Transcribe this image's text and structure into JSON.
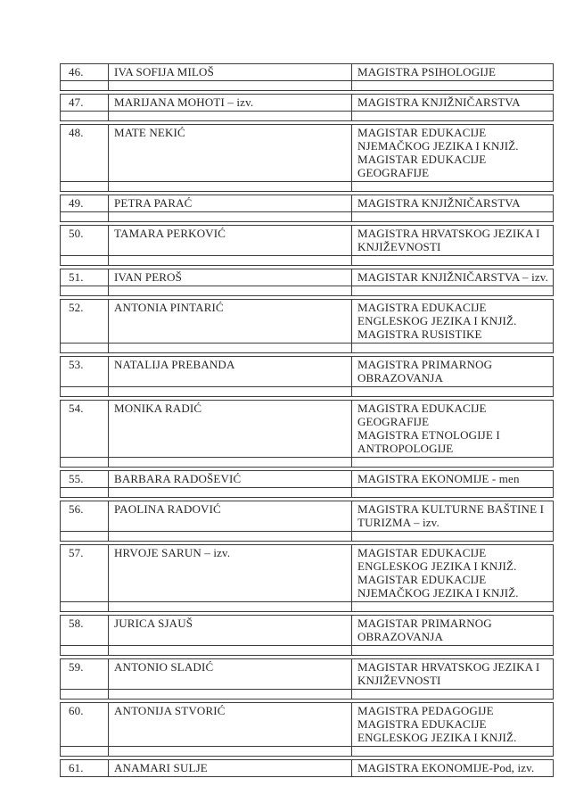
{
  "colors": {
    "border": "#3d3d3d",
    "text": "#262626",
    "background": "#ffffff"
  },
  "table": {
    "records": [
      {
        "num": "46.",
        "name": "IVA SOFIJA MILOŠ",
        "title": "MAGISTRA PSIHOLOGIJE",
        "has_spacer": true
      },
      {
        "num": "47.",
        "name": "MARIJANA MOHOTI – izv.",
        "title": "MAGISTRA KNJIŽNIČARSTVA",
        "has_spacer": true
      },
      {
        "num": "48.",
        "name": "MATE NEKIĆ",
        "title": "MAGISTAR EDUKACIJE\nNJEMAČKOG JEZIKA I KNJIŽ.\nMAGISTAR EDUKACIJE\nGEOGRAFIJE",
        "has_spacer": true
      },
      {
        "num": "49.",
        "name": "PETRA PARAĆ",
        "title": "MAGISTRA KNJIŽNIČARSTVA",
        "has_spacer": true
      },
      {
        "num": "50.",
        "name": "TAMARA PERKOVIĆ",
        "title": "MAGISTRA HRVATSKOG JEZIKA I\nKNJIŽEVNOSTI",
        "has_spacer": true
      },
      {
        "num": "51.",
        "name": "IVAN PEROŠ",
        "title": "MAGISTAR KNJIŽNIČARSTVA – izv.",
        "has_spacer": true
      },
      {
        "num": "52.",
        "name": "ANTONIA PINTARIĆ",
        "title": "MAGISTRA EDUKACIJE\nENGLESKOG JEZIKA I KNJIŽ.\nMAGISTRA RUSISTIKE",
        "has_spacer": true
      },
      {
        "num": "53.",
        "name": "NATALIJA PREBANDA",
        "title": "MAGISTRA PRIMARNOG\nOBRAZOVANJA",
        "has_spacer": true
      },
      {
        "num": "54.",
        "name": "MONIKA RADIĆ",
        "title": "MAGISTRA EDUKACIJE\nGEOGRAFIJE\nMAGISTRA ETNOLOGIJE I\nANTROPOLOGIJE",
        "has_spacer": true
      },
      {
        "num": "55.",
        "name": "BARBARA RADOŠEVIĆ",
        "title": "MAGISTRA EKONOMIJE - men",
        "has_spacer": true
      },
      {
        "num": "56.",
        "name": "PAOLINA RADOVIĆ",
        "title": "MAGISTRA KULTURNE BAŠTINE I\nTURIZMA – izv.",
        "has_spacer": true
      },
      {
        "num": "57.",
        "name": "HRVOJE SARUN – izv.",
        "title": "MAGISTAR EDUKACIJE\nENGLESKOG JEZIKA I KNJIŽ.\nMAGISTAR EDUKACIJE\nNJEMAČKOG JEZIKA I KNJIŽ.",
        "has_spacer": true
      },
      {
        "num": "58.",
        "name": "JURICA SJAUŠ",
        "title": "MAGISTAR PRIMARNOG\nOBRAZOVANJA",
        "has_spacer": true
      },
      {
        "num": "59.",
        "name": "ANTONIO SLADIĆ",
        "title": "MAGISTAR HRVATSKOG JEZIKA I\nKNJIŽEVNOSTI",
        "has_spacer": true
      },
      {
        "num": "60.",
        "name": "ANTONIJA STVORIĆ",
        "title": "MAGISTRA PEDAGOGIJE\nMAGISTRA EDUKACIJE\nENGLESKOG JEZIKA I KNJIŽ.",
        "has_spacer": true
      },
      {
        "num": "61.",
        "name": "ANAMARI SULJE",
        "title": "MAGISTRA EKONOMIJE-Pod, izv.",
        "has_spacer": false
      }
    ]
  }
}
